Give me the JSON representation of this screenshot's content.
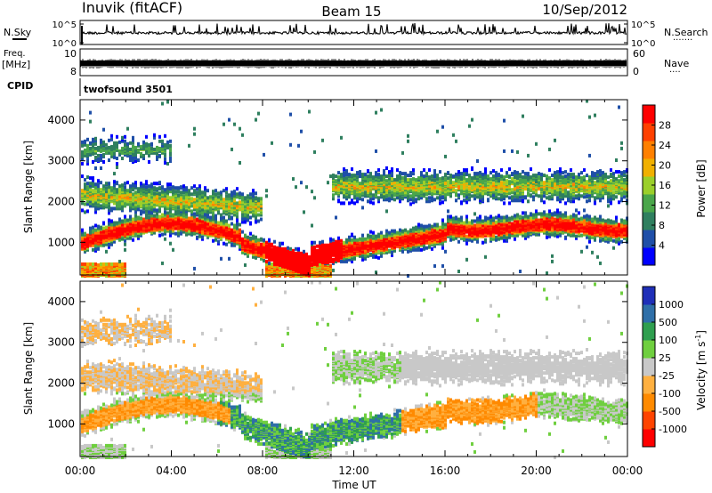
{
  "header": {
    "station": "Inuvik (fitACF)",
    "beam": "Beam 15",
    "date": "10/Sep/2012"
  },
  "labels": {
    "nsky": "N.Sky",
    "nsearch": "N.Search",
    "freq_line1": "Freq.",
    "freq_line2": "[MHz]",
    "nave": "Nave",
    "cpid": "CPID",
    "cpid_value": "twofsound 3501",
    "xlabel": "Time UT",
    "ylabel": "Slant Range [km]"
  },
  "chart_data": [
    {
      "type": "line",
      "name": "nsky-nsearch-strip",
      "left_ticks": [
        "10^5",
        "10^0"
      ],
      "right_ticks": [
        "10^5",
        "10^0"
      ]
    },
    {
      "type": "line",
      "name": "freq-nave-strip",
      "left_ticks": [
        "10",
        "8"
      ],
      "right_ticks": [
        "60",
        "0"
      ]
    },
    {
      "type": "heatmap",
      "name": "power",
      "ylabel": "Slant Range [km]",
      "ylim": [
        200,
        4500
      ],
      "y_ticks": [
        1000,
        2000,
        3000,
        4000
      ],
      "x_ticks": [
        "00:00",
        "04:00",
        "08:00",
        "12:00",
        "16:00",
        "20:00",
        "00:00"
      ],
      "colorbar": {
        "label": "Power [dB]",
        "ticks": [
          "28",
          "24",
          "20",
          "16",
          "12",
          "8",
          "4"
        ],
        "colors": [
          "#0000ff",
          "#1f4fa8",
          "#2f7f5f",
          "#4aa64a",
          "#9bcf2a",
          "#f0b000",
          "#ff8000",
          "#ff4000",
          "#ff0000"
        ]
      }
    },
    {
      "type": "heatmap",
      "name": "velocity",
      "ylabel": "Slant Range [km]",
      "ylim": [
        200,
        4500
      ],
      "y_ticks": [
        1000,
        2000,
        3000,
        4000
      ],
      "x_ticks": [
        "00:00",
        "04:00",
        "08:00",
        "12:00",
        "16:00",
        "20:00",
        "00:00"
      ],
      "colorbar": {
        "label": "Velocity [m s",
        "label_superscript": "-1",
        "label_close": "]",
        "ticks": [
          "1000",
          "500",
          "100",
          "25",
          "-25",
          "-100",
          "-500",
          "-1000"
        ],
        "colors": [
          "#ff0000",
          "#ff4400",
          "#ff8a00",
          "#ffb040",
          "#c8c8c8",
          "#6fcf3f",
          "#2f9f4f",
          "#2f6fa8",
          "#1f2fb8"
        ]
      }
    }
  ]
}
